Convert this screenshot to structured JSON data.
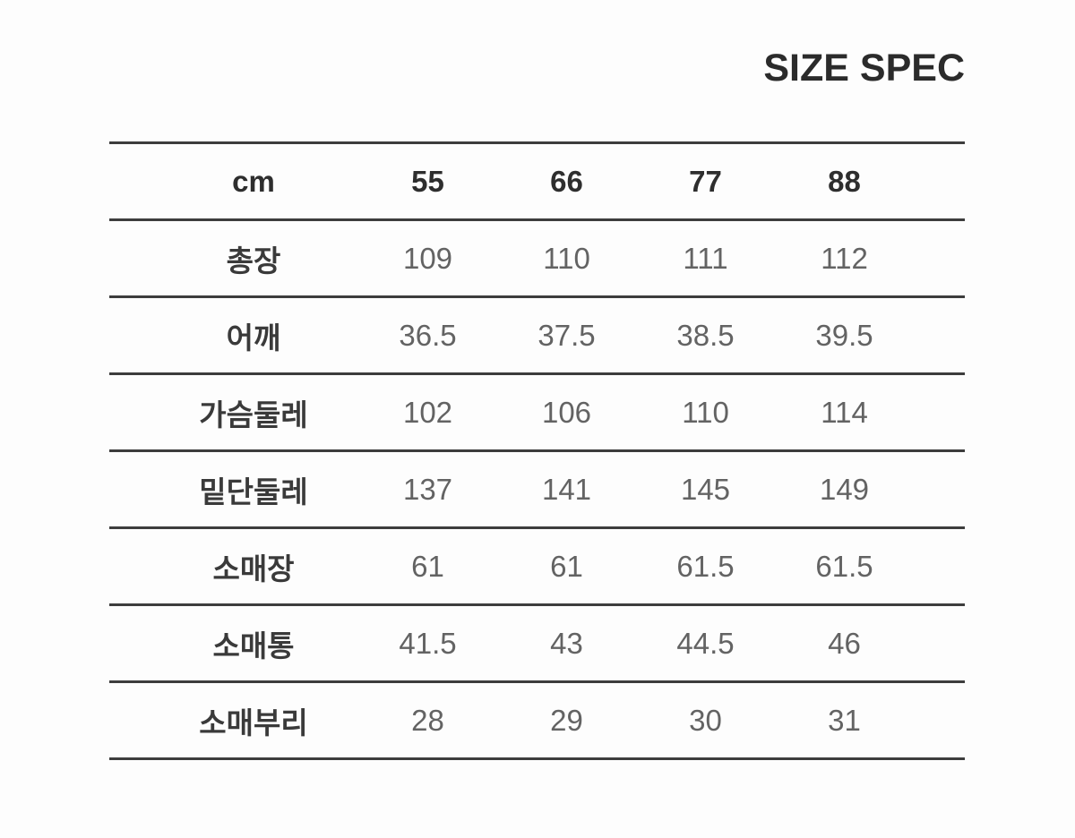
{
  "title": "SIZE SPEC",
  "colors": {
    "background": "#fdfdfd",
    "rule_line": "#3d3d3d",
    "title_text": "#2b2b2b",
    "header_text": "#2e2e2e",
    "label_text": "#3a3a3a",
    "value_text": "#636363"
  },
  "chart_data": {
    "type": "table",
    "title": "SIZE SPEC",
    "unit": "cm",
    "columns": [
      "55",
      "66",
      "77",
      "88"
    ],
    "rows": [
      {
        "label": "총장",
        "values": [
          "109",
          "110",
          "111",
          "112"
        ]
      },
      {
        "label": "어깨",
        "values": [
          "36.5",
          "37.5",
          "38.5",
          "39.5"
        ]
      },
      {
        "label": "가슴둘레",
        "values": [
          "102",
          "106",
          "110",
          "114"
        ]
      },
      {
        "label": "밑단둘레",
        "values": [
          "137",
          "141",
          "145",
          "149"
        ]
      },
      {
        "label": "소매장",
        "values": [
          "61",
          "61",
          "61.5",
          "61.5"
        ]
      },
      {
        "label": "소매통",
        "values": [
          "41.5",
          "43",
          "44.5",
          "46"
        ]
      },
      {
        "label": "소매부리",
        "values": [
          "28",
          "29",
          "30",
          "31"
        ]
      }
    ],
    "layout": {
      "grid": "horizontal rules only, no vertical lines",
      "title_position": "top-right",
      "value_alignment": "center"
    }
  }
}
